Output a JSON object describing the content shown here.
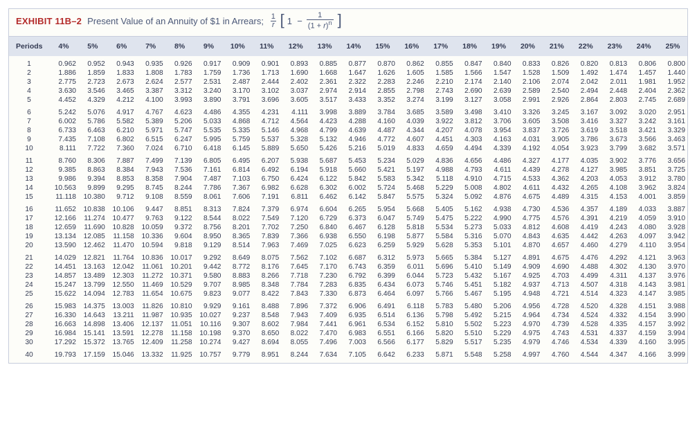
{
  "exhibit_label": "EXHIBIT 11B–2",
  "exhibit_title": "Present Value of an Annuity of $1 in Arrears;",
  "periods_header": "Periods",
  "rates": [
    "4%",
    "5%",
    "6%",
    "7%",
    "8%",
    "9%",
    "10%",
    "11%",
    "12%",
    "13%",
    "14%",
    "15%",
    "16%",
    "17%",
    "18%",
    "19%",
    "20%",
    "21%",
    "22%",
    "23%",
    "24%",
    "25%"
  ],
  "groups": [
    [
      {
        "p": "1",
        "v": [
          "0.962",
          "0.952",
          "0.943",
          "0.935",
          "0.926",
          "0.917",
          "0.909",
          "0.901",
          "0.893",
          "0.885",
          "0.877",
          "0.870",
          "0.862",
          "0.855",
          "0.847",
          "0.840",
          "0.833",
          "0.826",
          "0.820",
          "0.813",
          "0.806",
          "0.800"
        ]
      },
      {
        "p": "2",
        "v": [
          "1.886",
          "1.859",
          "1.833",
          "1.808",
          "1.783",
          "1.759",
          "1.736",
          "1.713",
          "1.690",
          "1.668",
          "1.647",
          "1.626",
          "1.605",
          "1.585",
          "1.566",
          "1.547",
          "1.528",
          "1.509",
          "1.492",
          "1.474",
          "1.457",
          "1.440"
        ]
      },
      {
        "p": "3",
        "v": [
          "2.775",
          "2.723",
          "2.673",
          "2.624",
          "2.577",
          "2.531",
          "2.487",
          "2.444",
          "2.402",
          "2.361",
          "2.322",
          "2.283",
          "2.246",
          "2.210",
          "2.174",
          "2.140",
          "2.106",
          "2.074",
          "2.042",
          "2.011",
          "1.981",
          "1.952"
        ]
      },
      {
        "p": "4",
        "v": [
          "3.630",
          "3.546",
          "3.465",
          "3.387",
          "3.312",
          "3.240",
          "3.170",
          "3.102",
          "3.037",
          "2.974",
          "2.914",
          "2.855",
          "2.798",
          "2.743",
          "2.690",
          "2.639",
          "2.589",
          "2.540",
          "2.494",
          "2.448",
          "2.404",
          "2.362"
        ]
      },
      {
        "p": "5",
        "v": [
          "4.452",
          "4.329",
          "4.212",
          "4.100",
          "3.993",
          "3.890",
          "3.791",
          "3.696",
          "3.605",
          "3.517",
          "3.433",
          "3.352",
          "3.274",
          "3.199",
          "3.127",
          "3.058",
          "2.991",
          "2.926",
          "2.864",
          "2.803",
          "2.745",
          "2.689"
        ]
      }
    ],
    [
      {
        "p": "6",
        "v": [
          "5.242",
          "5.076",
          "4.917",
          "4.767",
          "4.623",
          "4.486",
          "4.355",
          "4.231",
          "4.111",
          "3.998",
          "3.889",
          "3.784",
          "3.685",
          "3.589",
          "3.498",
          "3.410",
          "3.326",
          "3.245",
          "3.167",
          "3.092",
          "3.020",
          "2.951"
        ]
      },
      {
        "p": "7",
        "v": [
          "6.002",
          "5.786",
          "5.582",
          "5.389",
          "5.206",
          "5.033",
          "4.868",
          "4.712",
          "4.564",
          "4.423",
          "4.288",
          "4.160",
          "4.039",
          "3.922",
          "3.812",
          "3.706",
          "3.605",
          "3.508",
          "3.416",
          "3.327",
          "3.242",
          "3.161"
        ]
      },
      {
        "p": "8",
        "v": [
          "6.733",
          "6.463",
          "6.210",
          "5.971",
          "5.747",
          "5.535",
          "5.335",
          "5.146",
          "4.968",
          "4.799",
          "4.639",
          "4.487",
          "4.344",
          "4.207",
          "4.078",
          "3.954",
          "3.837",
          "3.726",
          "3.619",
          "3.518",
          "3.421",
          "3.329"
        ]
      },
      {
        "p": "9",
        "v": [
          "7.435",
          "7.108",
          "6.802",
          "6.515",
          "6.247",
          "5.995",
          "5.759",
          "5.537",
          "5.328",
          "5.132",
          "4.946",
          "4.772",
          "4.607",
          "4.451",
          "4.303",
          "4.163",
          "4.031",
          "3.905",
          "3.786",
          "3.673",
          "3.566",
          "3.463"
        ]
      },
      {
        "p": "10",
        "v": [
          "8.111",
          "7.722",
          "7.360",
          "7.024",
          "6.710",
          "6.418",
          "6.145",
          "5.889",
          "5.650",
          "5.426",
          "5.216",
          "5.019",
          "4.833",
          "4.659",
          "4.494",
          "4.339",
          "4.192",
          "4.054",
          "3.923",
          "3.799",
          "3.682",
          "3.571"
        ]
      }
    ],
    [
      {
        "p": "11",
        "v": [
          "8.760",
          "8.306",
          "7.887",
          "7.499",
          "7.139",
          "6.805",
          "6.495",
          "6.207",
          "5.938",
          "5.687",
          "5.453",
          "5.234",
          "5.029",
          "4.836",
          "4.656",
          "4.486",
          "4.327",
          "4.177",
          "4.035",
          "3.902",
          "3.776",
          "3.656"
        ]
      },
      {
        "p": "12",
        "v": [
          "9.385",
          "8.863",
          "8.384",
          "7.943",
          "7.536",
          "7.161",
          "6.814",
          "6.492",
          "6.194",
          "5.918",
          "5.660",
          "5.421",
          "5.197",
          "4.988",
          "4.793",
          "4.611",
          "4.439",
          "4.278",
          "4.127",
          "3.985",
          "3.851",
          "3.725"
        ]
      },
      {
        "p": "13",
        "v": [
          "9.986",
          "9.394",
          "8.853",
          "8.358",
          "7.904",
          "7.487",
          "7.103",
          "6.750",
          "6.424",
          "6.122",
          "5.842",
          "5.583",
          "5.342",
          "5.118",
          "4.910",
          "4.715",
          "4.533",
          "4.362",
          "4.203",
          "4.053",
          "3.912",
          "3.780"
        ]
      },
      {
        "p": "14",
        "v": [
          "10.563",
          "9.899",
          "9.295",
          "8.745",
          "8.244",
          "7.786",
          "7.367",
          "6.982",
          "6.628",
          "6.302",
          "6.002",
          "5.724",
          "5.468",
          "5.229",
          "5.008",
          "4.802",
          "4.611",
          "4.432",
          "4.265",
          "4.108",
          "3.962",
          "3.824"
        ]
      },
      {
        "p": "15",
        "v": [
          "11.118",
          "10.380",
          "9.712",
          "9.108",
          "8.559",
          "8.061",
          "7.606",
          "7.191",
          "6.811",
          "6.462",
          "6.142",
          "5.847",
          "5.575",
          "5.324",
          "5.092",
          "4.876",
          "4.675",
          "4.489",
          "4.315",
          "4.153",
          "4.001",
          "3.859"
        ]
      }
    ],
    [
      {
        "p": "16",
        "v": [
          "11.652",
          "10.838",
          "10.106",
          "9.447",
          "8.851",
          "8.313",
          "7.824",
          "7.379",
          "6.974",
          "6.604",
          "6.265",
          "5.954",
          "5.668",
          "5.405",
          "5.162",
          "4.938",
          "4.730",
          "4.536",
          "4.357",
          "4.189",
          "4.033",
          "3.887"
        ]
      },
      {
        "p": "17",
        "v": [
          "12.166",
          "11.274",
          "10.477",
          "9.763",
          "9.122",
          "8.544",
          "8.022",
          "7.549",
          "7.120",
          "6.729",
          "6.373",
          "6.047",
          "5.749",
          "5.475",
          "5.222",
          "4.990",
          "4.775",
          "4.576",
          "4.391",
          "4.219",
          "4.059",
          "3.910"
        ]
      },
      {
        "p": "18",
        "v": [
          "12.659",
          "11.690",
          "10.828",
          "10.059",
          "9.372",
          "8.756",
          "8.201",
          "7.702",
          "7.250",
          "6.840",
          "6.467",
          "6.128",
          "5.818",
          "5.534",
          "5.273",
          "5.033",
          "4.812",
          "4.608",
          "4.419",
          "4.243",
          "4.080",
          "3.928"
        ]
      },
      {
        "p": "19",
        "v": [
          "13.134",
          "12.085",
          "11.158",
          "10.336",
          "9.604",
          "8.950",
          "8.365",
          "7.839",
          "7.366",
          "6.938",
          "6.550",
          "6.198",
          "5.877",
          "5.584",
          "5.316",
          "5.070",
          "4.843",
          "4.635",
          "4.442",
          "4.263",
          "4.097",
          "3.942"
        ]
      },
      {
        "p": "20",
        "v": [
          "13.590",
          "12.462",
          "11.470",
          "10.594",
          "9.818",
          "9.129",
          "8.514",
          "7.963",
          "7.469",
          "7.025",
          "6.623",
          "6.259",
          "5.929",
          "5.628",
          "5.353",
          "5.101",
          "4.870",
          "4.657",
          "4.460",
          "4.279",
          "4.110",
          "3.954"
        ]
      }
    ],
    [
      {
        "p": "21",
        "v": [
          "14.029",
          "12.821",
          "11.764",
          "10.836",
          "10.017",
          "9.292",
          "8.649",
          "8.075",
          "7.562",
          "7.102",
          "6.687",
          "6.312",
          "5.973",
          "5.665",
          "5.384",
          "5.127",
          "4.891",
          "4.675",
          "4.476",
          "4.292",
          "4.121",
          "3.963"
        ]
      },
      {
        "p": "22",
        "v": [
          "14.451",
          "13.163",
          "12.042",
          "11.061",
          "10.201",
          "9.442",
          "8.772",
          "8.176",
          "7.645",
          "7.170",
          "6.743",
          "6.359",
          "6.011",
          "5.696",
          "5.410",
          "5.149",
          "4.909",
          "4.690",
          "4.488",
          "4.302",
          "4.130",
          "3.970"
        ]
      },
      {
        "p": "23",
        "v": [
          "14.857",
          "13.489",
          "12.303",
          "11.272",
          "10.371",
          "9.580",
          "8.883",
          "8.266",
          "7.718",
          "7.230",
          "6.792",
          "6.399",
          "6.044",
          "5.723",
          "5.432",
          "5.167",
          "4.925",
          "4.703",
          "4.499",
          "4.311",
          "4.137",
          "3.976"
        ]
      },
      {
        "p": "24",
        "v": [
          "15.247",
          "13.799",
          "12.550",
          "11.469",
          "10.529",
          "9.707",
          "8.985",
          "8.348",
          "7.784",
          "7.283",
          "6.835",
          "6.434",
          "6.073",
          "5.746",
          "5.451",
          "5.182",
          "4.937",
          "4.713",
          "4.507",
          "4.318",
          "4.143",
          "3.981"
        ]
      },
      {
        "p": "25",
        "v": [
          "15.622",
          "14.094",
          "12.783",
          "11.654",
          "10.675",
          "9.823",
          "9.077",
          "8.422",
          "7.843",
          "7.330",
          "6.873",
          "6.464",
          "6.097",
          "5.766",
          "5.467",
          "5.195",
          "4.948",
          "4.721",
          "4.514",
          "4.323",
          "4.147",
          "3.985"
        ]
      }
    ],
    [
      {
        "p": "26",
        "v": [
          "15.983",
          "14.375",
          "13.003",
          "11.826",
          "10.810",
          "9.929",
          "9.161",
          "8.488",
          "7.896",
          "7.372",
          "6.906",
          "6.491",
          "6.118",
          "5.783",
          "5.480",
          "5.206",
          "4.956",
          "4.728",
          "4.520",
          "4.328",
          "4.151",
          "3.988"
        ]
      },
      {
        "p": "27",
        "v": [
          "16.330",
          "14.643",
          "13.211",
          "11.987",
          "10.935",
          "10.027",
          "9.237",
          "8.548",
          "7.943",
          "7.409",
          "6.935",
          "6.514",
          "6.136",
          "5.798",
          "5.492",
          "5.215",
          "4.964",
          "4.734",
          "4.524",
          "4.332",
          "4.154",
          "3.990"
        ]
      },
      {
        "p": "28",
        "v": [
          "16.663",
          "14.898",
          "13.406",
          "12.137",
          "11.051",
          "10.116",
          "9.307",
          "8.602",
          "7.984",
          "7.441",
          "6.961",
          "6.534",
          "6.152",
          "5.810",
          "5.502",
          "5.223",
          "4.970",
          "4.739",
          "4.528",
          "4.335",
          "4.157",
          "3.992"
        ]
      },
      {
        "p": "29",
        "v": [
          "16.984",
          "15.141",
          "13.591",
          "12.278",
          "11.158",
          "10.198",
          "9.370",
          "8.650",
          "8.022",
          "7.470",
          "6.983",
          "6.551",
          "6.166",
          "5.820",
          "5.510",
          "5.229",
          "4.975",
          "4.743",
          "4.531",
          "4.337",
          "4.159",
          "3.994"
        ]
      },
      {
        "p": "30",
        "v": [
          "17.292",
          "15.372",
          "13.765",
          "12.409",
          "11.258",
          "10.274",
          "9.427",
          "8.694",
          "8.055",
          "7.496",
          "7.003",
          "6.566",
          "6.177",
          "5.829",
          "5.517",
          "5.235",
          "4.979",
          "4.746",
          "4.534",
          "4.339",
          "4.160",
          "3.995"
        ]
      }
    ],
    [
      {
        "p": "40",
        "v": [
          "19.793",
          "17.159",
          "15.046",
          "13.332",
          "11.925",
          "10.757",
          "9.779",
          "8.951",
          "8.244",
          "7.634",
          "7.105",
          "6.642",
          "6.233",
          "5.871",
          "5.548",
          "5.258",
          "4.997",
          "4.760",
          "4.544",
          "4.347",
          "4.166",
          "3.999"
        ]
      }
    ]
  ]
}
